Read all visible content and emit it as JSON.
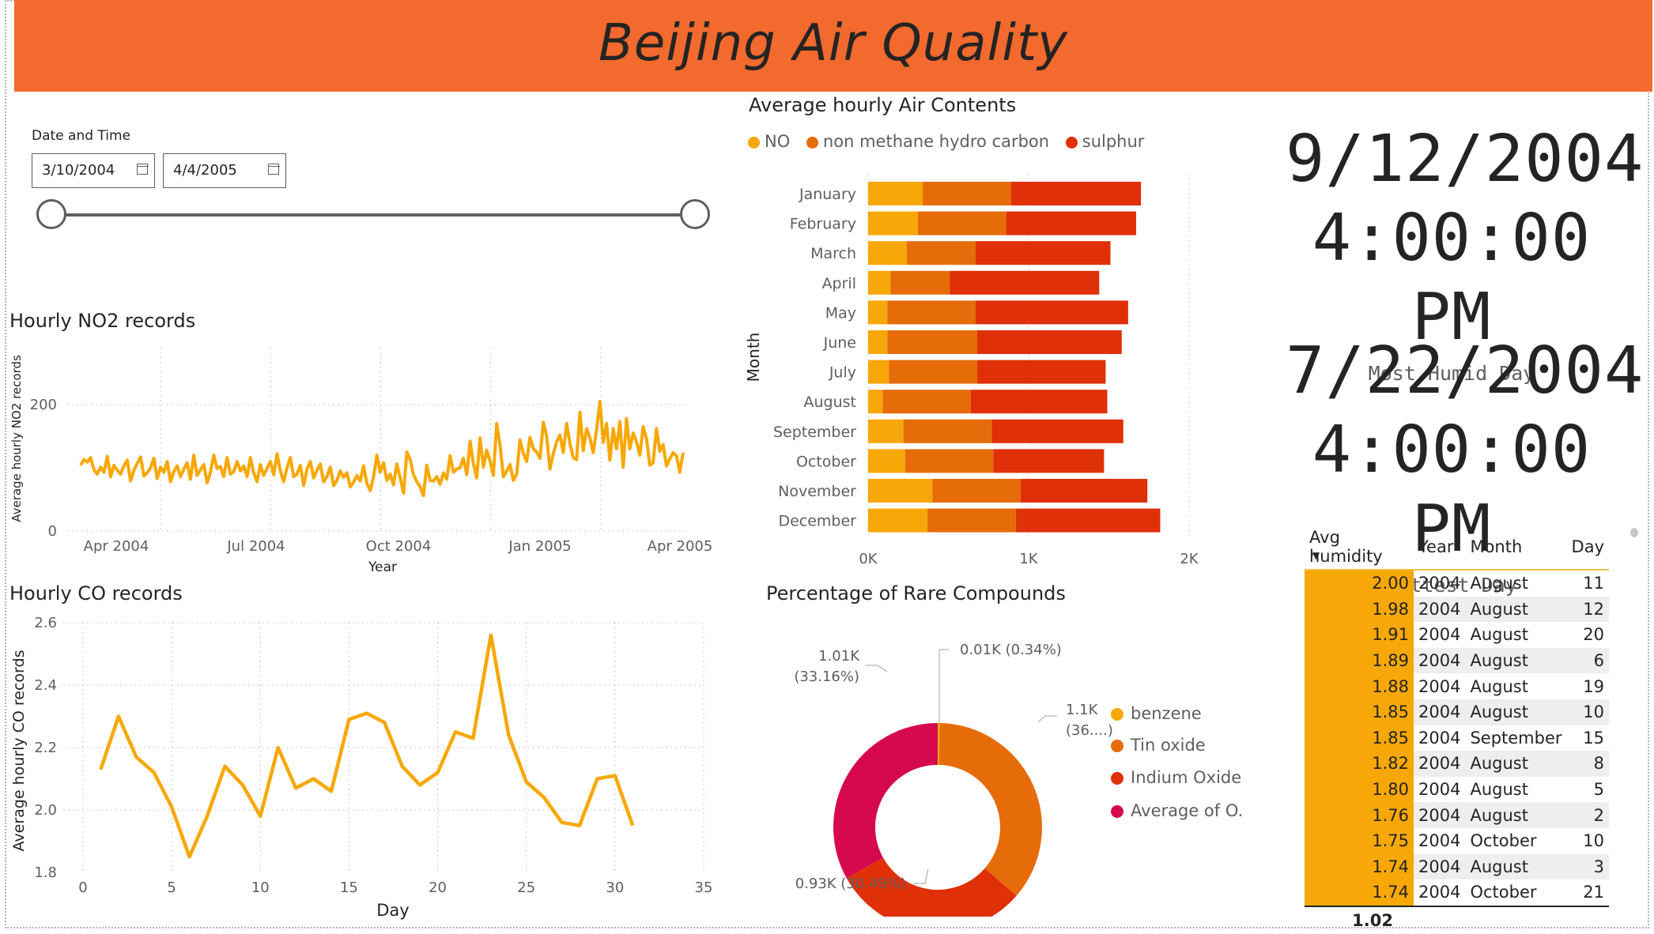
{
  "header": {
    "title": "Beijing Air Quality"
  },
  "slicer": {
    "label": "Date and Time",
    "start": "3/10/2004",
    "end": "4/4/2005"
  },
  "no2": {
    "title": "Hourly NO2 records",
    "ylabel": "Average hourly NO2 records",
    "xlabel": "Year",
    "yticks": [
      "200",
      "0"
    ],
    "xticks": [
      "Apr 2004",
      "Jul 2004",
      "Oct 2004",
      "Jan 2005",
      "Apr 2005"
    ],
    "color": "#f7a808"
  },
  "air": {
    "title": "Average hourly Air Contents",
    "legend": [
      "NO",
      "non methane hydro carbon",
      "sulphur"
    ],
    "ylabel": "Month",
    "xticks": [
      "0K",
      "1K",
      "2K"
    ],
    "colors": [
      "#f7a808",
      "#e66c0a",
      "#e03008"
    ]
  },
  "co": {
    "title": "Hourly CO records",
    "ylabel": "Average hourly CO records",
    "xlabel": "Day",
    "yticks": [
      "2.6",
      "2.4",
      "2.2",
      "2.0",
      "1.8"
    ],
    "xticks": [
      "0",
      "5",
      "10",
      "15",
      "20",
      "25",
      "30",
      "35"
    ],
    "color": "#f7a808"
  },
  "rare": {
    "title": "Percentage of Rare Compounds",
    "labels": {
      "benzene": "0.01K (0.34%)",
      "tin_a": "1.1K",
      "tin_b": "(36....)",
      "indium": "0.93K (30.49%)",
      "other_a": "1.01K",
      "other_b": "(33.16%)"
    },
    "legend": [
      "benzene",
      "Tin oxide",
      "Indium Oxide",
      "Average of O..."
    ],
    "colors": [
      "#f7a808",
      "#e66c0a",
      "#e03008",
      "#d6094f"
    ]
  },
  "kpis": [
    {
      "date": "9/12/2004",
      "time": "4:00:00 PM",
      "label": "Most Humid Day"
    },
    {
      "date": "7/22/2004",
      "time": "4:00:00 PM",
      "label": "Hottest Day"
    }
  ],
  "humidity_table": {
    "headers": [
      "Avg humidity",
      "Year",
      "Month",
      "Day"
    ],
    "rows": [
      [
        "2.00",
        "2004",
        "August",
        "11"
      ],
      [
        "1.98",
        "2004",
        "August",
        "12"
      ],
      [
        "1.91",
        "2004",
        "August",
        "20"
      ],
      [
        "1.89",
        "2004",
        "August",
        "6"
      ],
      [
        "1.88",
        "2004",
        "August",
        "19"
      ],
      [
        "1.85",
        "2004",
        "August",
        "10"
      ],
      [
        "1.85",
        "2004",
        "September",
        "15"
      ],
      [
        "1.82",
        "2004",
        "August",
        "8"
      ],
      [
        "1.80",
        "2004",
        "August",
        "5"
      ],
      [
        "1.76",
        "2004",
        "August",
        "2"
      ],
      [
        "1.75",
        "2004",
        "October",
        "10"
      ],
      [
        "1.74",
        "2004",
        "August",
        "3"
      ],
      [
        "1.74",
        "2004",
        "October",
        "21"
      ]
    ],
    "total": "1.02"
  },
  "chart_data": [
    {
      "type": "line",
      "title": "Hourly NO2 records",
      "xlabel": "Year",
      "ylabel": "Average hourly NO2 records",
      "ylim": [
        0,
        290
      ],
      "x_range": [
        "2004-03-10",
        "2005-04-04"
      ],
      "values": [
        104,
        113,
        109,
        116,
        97,
        90,
        101,
        93,
        118,
        86,
        104,
        96,
        90,
        103,
        112,
        79,
        96,
        107,
        117,
        87,
        92,
        100,
        115,
        83,
        101,
        93,
        110,
        78,
        94,
        103,
        86,
        98,
        108,
        82,
        120,
        88,
        97,
        105,
        76,
        93,
        120,
        99,
        102,
        86,
        116,
        90,
        94,
        110,
        95,
        103,
        86,
        116,
        92,
        78,
        105,
        88,
        99,
        110,
        89,
        122,
        95,
        78,
        100,
        116,
        86,
        90,
        104,
        72,
        98,
        110,
        84,
        96,
        106,
        78,
        86,
        101,
        72,
        80,
        95,
        85,
        92,
        70,
        77,
        88,
        79,
        103,
        75,
        64,
        86,
        120,
        93,
        108,
        80,
        90,
        73,
        106,
        84,
        60,
        125,
        113,
        89,
        78,
        70,
        56,
        104,
        80,
        79,
        86,
        74,
        92,
        82,
        119,
        93,
        98,
        100,
        115,
        89,
        142,
        106,
        84,
        147,
        101,
        128,
        111,
        88,
        170,
        135,
        86,
        95,
        105,
        80,
        90,
        144,
        123,
        110,
        148,
        130,
        125,
        115,
        172,
        150,
        98,
        122,
        141,
        152,
        124,
        170,
        138,
        116,
        113,
        188,
        127,
        162,
        147,
        124,
        160,
        205,
        140,
        170,
        112,
        162,
        130,
        173,
        101,
        178,
        130,
        155,
        141,
        120,
        165,
        146,
        104,
        108,
        162,
        126,
        137,
        103,
        114,
        124,
        119,
        93,
        124
      ],
      "color": "#f7a808"
    },
    {
      "type": "bar",
      "orientation": "horizontal",
      "stacked": true,
      "title": "Average hourly Air Contents",
      "ylabel": "Month",
      "categories": [
        "January",
        "February",
        "March",
        "April",
        "May",
        "June",
        "July",
        "August",
        "September",
        "October",
        "November",
        "December"
      ],
      "series": [
        {
          "name": "NO",
          "values": [
            340,
            310,
            240,
            140,
            120,
            120,
            130,
            90,
            220,
            230,
            400,
            370
          ]
        },
        {
          "name": "non methane hydro carbon",
          "values": [
            550,
            550,
            430,
            370,
            550,
            560,
            550,
            550,
            550,
            550,
            550,
            550
          ]
        },
        {
          "name": "sulphur",
          "values": [
            810,
            810,
            840,
            930,
            950,
            900,
            800,
            850,
            820,
            690,
            790,
            900
          ]
        }
      ],
      "xlim": [
        0,
        2000
      ]
    },
    {
      "type": "line",
      "title": "Hourly CO records",
      "xlabel": "Day",
      "ylabel": "Average hourly CO records",
      "xlim": [
        0,
        35
      ],
      "ylim": [
        1.8,
        2.6
      ],
      "x": [
        1,
        2,
        3,
        4,
        5,
        6,
        7,
        8,
        9,
        10,
        11,
        12,
        13,
        14,
        15,
        16,
        17,
        18,
        19,
        20,
        21,
        22,
        23,
        24,
        25,
        26,
        27,
        28,
        29,
        30,
        31
      ],
      "values": [
        2.13,
        2.3,
        2.17,
        2.12,
        2.01,
        1.85,
        1.98,
        2.14,
        2.08,
        1.98,
        2.2,
        2.07,
        2.1,
        2.06,
        2.29,
        2.31,
        2.28,
        2.14,
        2.08,
        2.12,
        2.25,
        2.23,
        2.56,
        2.24,
        2.09,
        2.04,
        1.96,
        1.95,
        2.1,
        2.11,
        1.95
      ],
      "color": "#f7a808"
    },
    {
      "type": "pie",
      "donut": true,
      "title": "Percentage of Rare Compounds",
      "categories": [
        "benzene",
        "Tin oxide",
        "Indium Oxide",
        "Average of O..."
      ],
      "values": [
        0.01,
        1.1,
        0.93,
        1.01
      ],
      "percent": [
        0.34,
        36.01,
        30.49,
        33.16
      ]
    }
  ]
}
